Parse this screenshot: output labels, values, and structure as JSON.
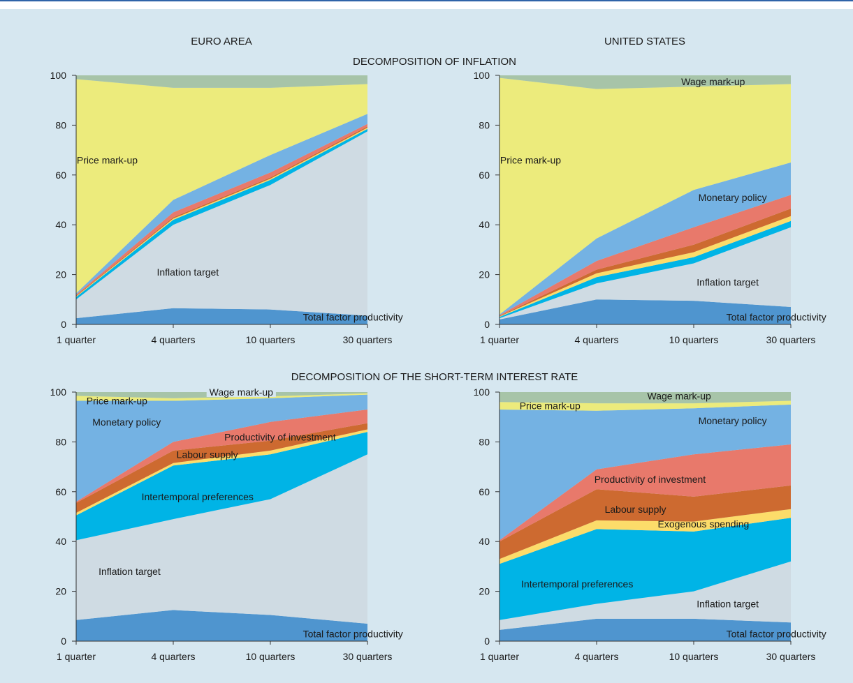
{
  "figure": {
    "column_titles": [
      "EURO AREA",
      "UNITED STATES"
    ],
    "section_titles": [
      "DECOMPOSITION OF INFLATION",
      "DECOMPOSITION OF THE SHORT-TERM INTEREST RATE"
    ]
  },
  "colors": {
    "frame_bg": "#d6e7f0",
    "top_rule": "#2f63a8",
    "total_factor_productivity": "#4f95cf",
    "inflation_target": "#cfdbe3",
    "intertemporal_preferences": "#00b4e6",
    "exogenous_spending": "#fcdc6a",
    "labour_supply": "#cd6a30",
    "productivity_of_investment": "#e8796b",
    "monetary_policy": "#74b2e3",
    "price_mark_up": "#eceb7c",
    "wage_mark_up": "#a7c4a8"
  },
  "chart_data": [
    {
      "type": "area",
      "title": "",
      "panel": "EURO AREA - DECOMPOSITION OF INFLATION",
      "categories": [
        "1 quarter",
        "4 quarters",
        "10 quarters",
        "30 quarters"
      ],
      "ylim": [
        0,
        100
      ],
      "yticks": [
        "0",
        "20",
        "40",
        "60",
        "80",
        "100"
      ],
      "series": [
        {
          "name": "Total factor productivity",
          "key": "total_factor_productivity",
          "values": [
            2.5,
            6.5,
            6.0,
            3.5
          ]
        },
        {
          "name": "Inflation target",
          "key": "inflation_target",
          "values": [
            7.5,
            33.5,
            50.0,
            74.0
          ]
        },
        {
          "key": "intertemporal_preferences",
          "values": [
            1.0,
            2.0,
            2.0,
            1.0
          ]
        },
        {
          "key": "exogenous_spending",
          "values": [
            0.3,
            0.5,
            0.5,
            0.5
          ]
        },
        {
          "key": "labour_supply",
          "values": [
            0.3,
            0.5,
            0.5,
            0.5
          ]
        },
        {
          "key": "productivity_of_investment",
          "values": [
            0.4,
            2.0,
            2.0,
            1.0
          ]
        },
        {
          "key": "monetary_policy",
          "values": [
            0.5,
            5.0,
            7.0,
            4.0
          ]
        },
        {
          "name": "Price mark-up",
          "key": "price_mark_up",
          "values": [
            86.0,
            45.0,
            27.0,
            12.0
          ]
        },
        {
          "key": "wage_mark_up",
          "values": [
            1.5,
            5.0,
            5.0,
            3.5
          ]
        }
      ],
      "labels": [
        {
          "text": "Price mark-up",
          "at": [
            0.32,
            66
          ]
        },
        {
          "text": "Inflation target",
          "at": [
            1.15,
            21
          ]
        },
        {
          "text": "Total factor productivity",
          "at": [
            2.85,
            3
          ]
        }
      ]
    },
    {
      "type": "area",
      "title": "",
      "panel": "UNITED STATES - DECOMPOSITION OF INFLATION",
      "categories": [
        "1 quarter",
        "4 quarters",
        "10 quarters",
        "30 quarters"
      ],
      "ylim": [
        0,
        100
      ],
      "yticks": [
        "0",
        "20",
        "40",
        "60",
        "80",
        "100"
      ],
      "series": [
        {
          "name": "Total factor productivity",
          "key": "total_factor_productivity",
          "values": [
            2.0,
            10.0,
            9.5,
            7.0
          ]
        },
        {
          "name": "Inflation target",
          "key": "inflation_target",
          "values": [
            0.5,
            6.5,
            15.0,
            32.0
          ]
        },
        {
          "key": "intertemporal_preferences",
          "values": [
            0.5,
            2.5,
            2.5,
            2.5
          ]
        },
        {
          "key": "exogenous_spending",
          "values": [
            0.2,
            1.5,
            2.0,
            2.0
          ]
        },
        {
          "key": "labour_supply",
          "values": [
            0.2,
            1.5,
            3.0,
            3.0
          ]
        },
        {
          "key": "productivity_of_investment",
          "values": [
            0.3,
            3.5,
            7.0,
            5.5
          ]
        },
        {
          "name": "Monetary policy",
          "key": "monetary_policy",
          "values": [
            0.3,
            9.0,
            15.0,
            13.0
          ]
        },
        {
          "name": "Price mark-up",
          "key": "price_mark_up",
          "values": [
            95.0,
            60.0,
            41.5,
            31.5
          ]
        },
        {
          "name": "Wage mark-up",
          "key": "wage_mark_up",
          "values": [
            1.0,
            5.5,
            4.5,
            3.5
          ]
        }
      ],
      "labels": [
        {
          "text": "Price mark-up",
          "at": [
            0.32,
            66
          ]
        },
        {
          "text": "Wage mark-up",
          "at": [
            2.2,
            97.5
          ]
        },
        {
          "text": "Monetary policy",
          "at": [
            2.4,
            51
          ]
        },
        {
          "text": "Inflation target",
          "at": [
            2.35,
            17
          ]
        },
        {
          "text": "Total factor productivity",
          "at": [
            2.85,
            3
          ]
        }
      ]
    },
    {
      "type": "area",
      "title": "",
      "panel": "EURO AREA - DECOMPOSITION OF THE SHORT-TERM INTEREST RATE",
      "categories": [
        "1 quarter",
        "4 quarters",
        "10 quarters",
        "30 quarters"
      ],
      "ylim": [
        0,
        100
      ],
      "yticks": [
        "0",
        "20",
        "40",
        "60",
        "80",
        "100"
      ],
      "series": [
        {
          "name": "Total factor productivity",
          "key": "total_factor_productivity",
          "values": [
            8.5,
            12.5,
            10.5,
            7.0
          ]
        },
        {
          "name": "Inflation target",
          "key": "inflation_target",
          "values": [
            32.0,
            36.5,
            46.5,
            68.0
          ]
        },
        {
          "name": "Intertemporal preferences",
          "key": "intertemporal_preferences",
          "values": [
            10.0,
            21.5,
            18.0,
            9.0
          ]
        },
        {
          "key": "exogenous_spending",
          "values": [
            1.0,
            1.0,
            1.5,
            1.0
          ]
        },
        {
          "name": "Labour supply",
          "key": "labour_supply",
          "values": [
            4.0,
            5.0,
            4.0,
            2.5
          ]
        },
        {
          "name": "Productivity of investment",
          "key": "productivity_of_investment",
          "values": [
            0.5,
            3.5,
            7.5,
            5.5
          ]
        },
        {
          "name": "Monetary policy",
          "key": "monetary_policy",
          "values": [
            40.5,
            16.5,
            9.5,
            6.0
          ]
        },
        {
          "name": "Price mark-up",
          "key": "price_mark_up",
          "values": [
            2.0,
            1.0,
            0.8,
            0.5
          ]
        },
        {
          "name": "Wage mark-up",
          "key": "wage_mark_up",
          "values": [
            1.5,
            2.5,
            1.7,
            0.5
          ]
        }
      ],
      "labels": [
        {
          "text": "Wage mark-up",
          "at": [
            1.7,
            100
          ],
          "boxed": true
        },
        {
          "text": "Price mark-up",
          "at": [
            0.42,
            96.5
          ]
        },
        {
          "text": "Monetary policy",
          "at": [
            0.52,
            88
          ]
        },
        {
          "text": "Productivity of investment",
          "at": [
            2.1,
            82
          ]
        },
        {
          "text": "Labour supply",
          "at": [
            1.35,
            75
          ]
        },
        {
          "text": "Intertemporal preferences",
          "at": [
            1.25,
            58
          ]
        },
        {
          "text": "Inflation target",
          "at": [
            0.55,
            28
          ]
        },
        {
          "text": "Total factor productivity",
          "at": [
            2.85,
            3
          ]
        }
      ]
    },
    {
      "type": "area",
      "title": "",
      "panel": "UNITED STATES - DECOMPOSITION OF THE SHORT-TERM INTEREST RATE",
      "categories": [
        "1 quarter",
        "4 quarters",
        "10 quarters",
        "30 quarters"
      ],
      "ylim": [
        0,
        100
      ],
      "yticks": [
        "0",
        "20",
        "40",
        "60",
        "80",
        "100"
      ],
      "series": [
        {
          "name": "Total factor productivity",
          "key": "total_factor_productivity",
          "values": [
            4.5,
            9.0,
            9.0,
            7.5
          ]
        },
        {
          "name": "Inflation target",
          "key": "inflation_target",
          "values": [
            4.0,
            6.0,
            11.0,
            24.5
          ]
        },
        {
          "name": "Intertemporal preferences",
          "key": "intertemporal_preferences",
          "values": [
            22.5,
            30.0,
            24.0,
            17.5
          ]
        },
        {
          "name": "Exogenous spending",
          "key": "exogenous_spending",
          "values": [
            2.0,
            3.5,
            4.0,
            3.5
          ]
        },
        {
          "name": "Labour supply",
          "key": "labour_supply",
          "values": [
            7.0,
            12.5,
            10.0,
            9.5
          ]
        },
        {
          "name": "Productivity of investment",
          "key": "productivity_of_investment",
          "values": [
            0.5,
            8.0,
            17.0,
            16.5
          ]
        },
        {
          "name": "Monetary policy",
          "key": "monetary_policy",
          "values": [
            52.5,
            23.5,
            18.5,
            16.0
          ]
        },
        {
          "name": "Price mark-up",
          "key": "price_mark_up",
          "values": [
            3.0,
            3.0,
            2.0,
            1.5
          ]
        },
        {
          "name": "Wage mark-up",
          "key": "wage_mark_up",
          "values": [
            4.0,
            4.5,
            4.5,
            3.5
          ]
        }
      ],
      "labels": [
        {
          "text": "Wage mark-up",
          "at": [
            1.85,
            98.5
          ]
        },
        {
          "text": "Price mark-up",
          "at": [
            0.52,
            94.5
          ]
        },
        {
          "text": "Monetary policy",
          "at": [
            2.4,
            88.5
          ]
        },
        {
          "text": "Productivity of investment",
          "at": [
            1.55,
            65
          ]
        },
        {
          "text": "Labour supply",
          "at": [
            1.4,
            53
          ]
        },
        {
          "text": "Exogenous spending",
          "at": [
            2.1,
            47
          ]
        },
        {
          "text": "Intertemporal preferences",
          "at": [
            0.8,
            23
          ]
        },
        {
          "text": "Inflation target",
          "at": [
            2.35,
            15
          ]
        },
        {
          "text": "Total factor productivity",
          "at": [
            2.85,
            3
          ]
        }
      ]
    }
  ]
}
